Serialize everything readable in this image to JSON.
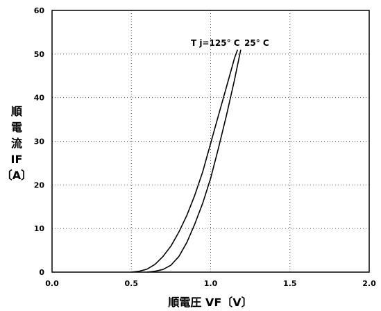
{
  "chart_data": {
    "type": "line",
    "xlabel": "順電圧 VF〔V〕",
    "ylabel_lines": [
      "順",
      "電",
      "流",
      "IF",
      "〔A〕"
    ],
    "xlim": [
      0.0,
      2.0
    ],
    "ylim": [
      0,
      60
    ],
    "x_ticks": [
      "0.0",
      "0.5",
      "1.0",
      "1.5",
      "2.0"
    ],
    "y_ticks": [
      "0",
      "10",
      "20",
      "30",
      "40",
      "50",
      "60"
    ],
    "grid": true,
    "series": [
      {
        "name": "Tj=125°C",
        "x": [
          0.5,
          0.55,
          0.6,
          0.65,
          0.7,
          0.75,
          0.8,
          0.85,
          0.9,
          0.95,
          1.0,
          1.05,
          1.1,
          1.15,
          1.17
        ],
        "y": [
          0.0,
          0.2,
          0.7,
          1.8,
          3.6,
          6.0,
          9.2,
          13.0,
          17.6,
          23.0,
          29.5,
          36.0,
          42.5,
          49.0,
          51.0
        ]
      },
      {
        "name": "25°C",
        "x": [
          0.6,
          0.65,
          0.7,
          0.75,
          0.8,
          0.85,
          0.9,
          0.95,
          1.0,
          1.05,
          1.1,
          1.15,
          1.19
        ],
        "y": [
          0.0,
          0.2,
          0.6,
          1.6,
          3.6,
          6.8,
          11.0,
          15.8,
          21.5,
          28.5,
          36.0,
          44.0,
          51.0
        ]
      }
    ],
    "annotations": {
      "tj_125": "T j=125° C",
      "t_25": "25° C"
    }
  }
}
